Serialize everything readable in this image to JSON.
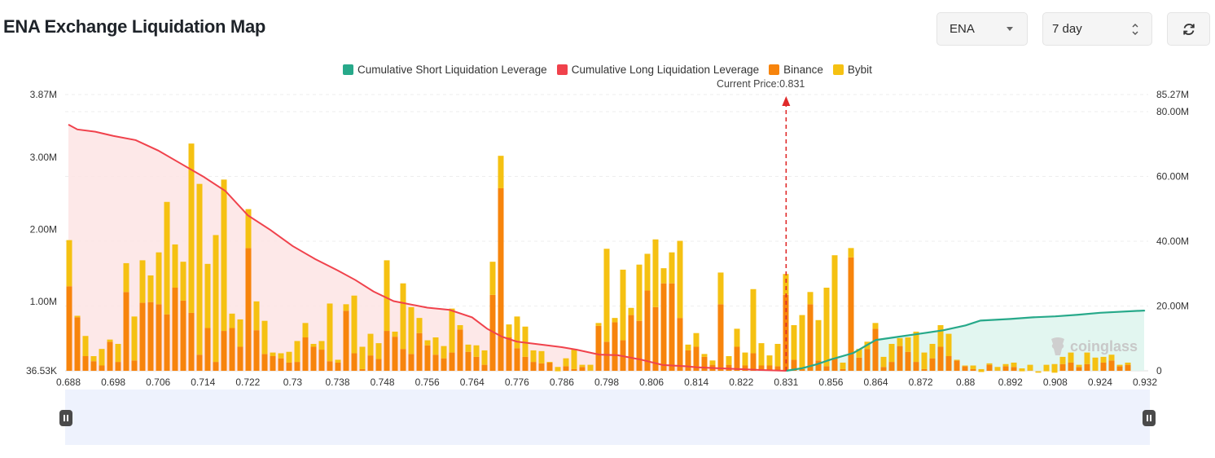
{
  "header": {
    "title": "ENA Exchange Liquidation Map",
    "symbol_value": "ENA",
    "range_value": "7 day"
  },
  "legend": {
    "short_label": "Cumulative Short Liquidation Leverage",
    "long_label": "Cumulative Long Liquidation Leverage",
    "binance_label": "Binance",
    "bybit_label": "Bybit"
  },
  "current_price_label": "Current Price:0.831",
  "watermark_text": "coinglass",
  "colors": {
    "short": "#27a98a",
    "long": "#f0424c",
    "binance": "#f7840c",
    "bybit": "#f5c112",
    "short_fill": "#dff5ee",
    "long_fill": "#fde4e4"
  },
  "chart_data": {
    "type": "bar",
    "x_tick_labels": [
      "0.688",
      "0.698",
      "0.706",
      "0.714",
      "0.722",
      "0.73",
      "0.738",
      "0.748",
      "0.756",
      "0.764",
      "0.776",
      "0.786",
      "0.798",
      "0.806",
      "0.814",
      "0.822",
      "0.831",
      "0.856",
      "0.864",
      "0.872",
      "0.88",
      "0.892",
      "0.908",
      "0.924",
      "0.932"
    ],
    "y_left_ticks": [
      "36.53K",
      "1.00M",
      "2.00M",
      "3.00M",
      "3.87M"
    ],
    "y_right_ticks": [
      "0",
      "20.00M",
      "40.00M",
      "60.00M",
      "80.00M",
      "85.27M"
    ],
    "y_left_range": [
      36530,
      3870000
    ],
    "y_right_range": [
      0,
      85270000
    ],
    "current_price": 0.831,
    "bars_binance": [
      1.21,
      0.78,
      0.24,
      0.17,
      0.11,
      0.44,
      0.16,
      1.13,
      0.18,
      0.98,
      0.99,
      0.96,
      0.82,
      1.19,
      1.01,
      0.84,
      0.26,
      0.63,
      0.16,
      0.59,
      0.63,
      0.37,
      1.74,
      0.6,
      0.27,
      0.24,
      0.21,
      0.15,
      0.16,
      0.5,
      0.37,
      0.33,
      0.17,
      0.15,
      0.87,
      0.28,
      0.06,
      0.25,
      0.2,
      0.59,
      0.51,
      0.34,
      0.27,
      0.56,
      0.39,
      0.26,
      0.21,
      0.29,
      0.61,
      0.3,
      0.23,
      0.12,
      1.09,
      2.57,
      0.5,
      0.35,
      0.23,
      0.16,
      0.14,
      0.15,
      0.03,
      0.1,
      0.06,
      0.09,
      0.04,
      0.66,
      0.44,
      0.71,
      0.46,
      0.81,
      0.73,
      1.15,
      0.92,
      1.25,
      1.25,
      0.77,
      0.32,
      0.37,
      0.23,
      0.12,
      0.96,
      0.12,
      0.37,
      0.11,
      0.28,
      0.11,
      0.11,
      0.1,
      1.09,
      0.19,
      0.06,
      0.96,
      0.18,
      0.1,
      0.22,
      0.06,
      1.61,
      0.22,
      0.34,
      0.62,
      0.09,
      0.16,
      0.38,
      0.3,
      0.16,
      0.06,
      0.21,
      0.37,
      0.24,
      0.18,
      0.1,
      0.06,
      0.02,
      0.12,
      0.04,
      0.1,
      0.09,
      0.03,
      0.04,
      0.01,
      0.03,
      0.01,
      0.13,
      0.15,
      0.09,
      0.13,
      0.04,
      0.15,
      0.18,
      0.1,
      0.12,
      0.01,
      0.01
    ],
    "bars_bybit": [
      0.64,
      0.02,
      0.28,
      0.07,
      0.23,
      0.03,
      0.25,
      0.4,
      0.61,
      0.59,
      0.37,
      0.72,
      1.56,
      0.6,
      0.54,
      2.35,
      2.37,
      0.89,
      1.76,
      2.1,
      0.2,
      0.38,
      0.54,
      0.4,
      0.46,
      0.05,
      0.07,
      0.15,
      0.29,
      0.2,
      0.04,
      0.12,
      0.8,
      0.04,
      0.09,
      0.8,
      0.31,
      0.3,
      0.22,
      0.98,
      0.07,
      0.91,
      0.65,
      0.21,
      0.07,
      0.24,
      0.17,
      0.61,
      0.06,
      0.1,
      0.16,
      0.2,
      0.46,
      0.45,
      0.18,
      0.44,
      0.42,
      0.16,
      0.17,
      0.01,
      0.06,
      0.11,
      0.28,
      0.03,
      0.08,
      0.04,
      1.29,
      0.06,
      0.98,
      0.1,
      0.78,
      0.51,
      0.94,
      0.21,
      0.43,
      1.07,
      0.08,
      0.19,
      0.04,
      0.06,
      0.44,
      0.12,
      0.25,
      0.18,
      0.89,
      0.31,
      0.14,
      0.31,
      0.29,
      0.48,
      0.75,
      0.17,
      0.56,
      1.09,
      1.42,
      0.09,
      0.13,
      0.12,
      0.1,
      0.08,
      0.14,
      0.25,
      0.11,
      0.2,
      0.42,
      0.23,
      0.2,
      0.3,
      0.31,
      0.01,
      0.01,
      0.05,
      0.04,
      0.02,
      0.05,
      0.03,
      0.06,
      0.04,
      0.08,
      0.02,
      0.09,
      0.12,
      0.1,
      0.14,
      0.03,
      0.16,
      0.18,
      0.08,
      0.08,
      0.02,
      0.03
    ],
    "long_cumulative": [
      [
        0.688,
        76.0
      ],
      [
        0.69,
        74.5
      ],
      [
        0.694,
        73.8
      ],
      [
        0.698,
        72.5
      ],
      [
        0.702,
        71.2
      ],
      [
        0.706,
        68.0
      ],
      [
        0.71,
        64.0
      ],
      [
        0.714,
        60.0
      ],
      [
        0.718,
        55.5
      ],
      [
        0.722,
        48.0
      ],
      [
        0.726,
        43.5
      ],
      [
        0.73,
        38.5
      ],
      [
        0.734,
        34.5
      ],
      [
        0.738,
        31.0
      ],
      [
        0.742,
        28.0
      ],
      [
        0.746,
        24.5
      ],
      [
        0.75,
        21.5
      ],
      [
        0.756,
        19.5
      ],
      [
        0.76,
        18.8
      ],
      [
        0.764,
        16.5
      ],
      [
        0.768,
        13.0
      ],
      [
        0.772,
        10.5
      ],
      [
        0.776,
        9.0
      ],
      [
        0.782,
        8.0
      ],
      [
        0.786,
        7.3
      ],
      [
        0.79,
        6.5
      ],
      [
        0.796,
        5.0
      ],
      [
        0.8,
        4.8
      ],
      [
        0.804,
        3.5
      ],
      [
        0.808,
        1.8
      ],
      [
        0.812,
        1.4
      ],
      [
        0.814,
        1.1
      ],
      [
        0.818,
        0.8
      ],
      [
        0.822,
        0.5
      ],
      [
        0.826,
        0.25
      ],
      [
        0.831,
        0.0
      ]
    ],
    "short_cumulative": [
      [
        0.831,
        0.0
      ],
      [
        0.84,
        0.8
      ],
      [
        0.848,
        2.0
      ],
      [
        0.856,
        3.5
      ],
      [
        0.86,
        5.5
      ],
      [
        0.864,
        9.5
      ],
      [
        0.868,
        10.5
      ],
      [
        0.872,
        11.5
      ],
      [
        0.876,
        12.5
      ],
      [
        0.88,
        14.0
      ],
      [
        0.884,
        15.5
      ],
      [
        0.892,
        16.0
      ],
      [
        0.9,
        16.5
      ],
      [
        0.908,
        16.8
      ],
      [
        0.916,
        17.3
      ],
      [
        0.924,
        17.9
      ],
      [
        0.932,
        18.6
      ],
      [
        0.94,
        18.8
      ]
    ]
  }
}
